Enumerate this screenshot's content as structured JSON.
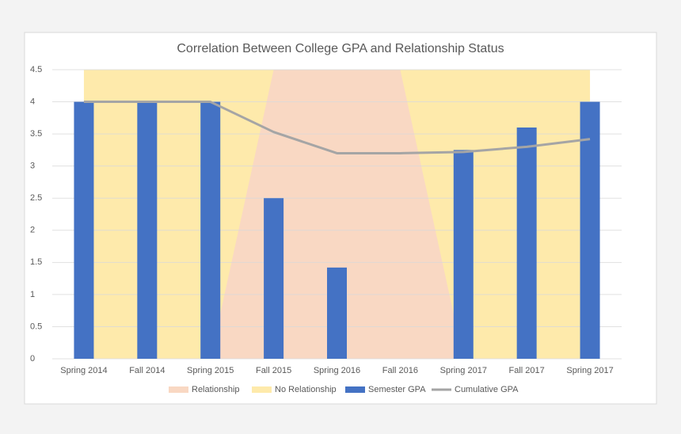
{
  "chart_data": {
    "type": "combo",
    "title": "Correlation Between College GPA and Relationship Status",
    "categories": [
      "Spring 2014",
      "Fall 2014",
      "Spring 2015",
      "Fall 2015",
      "Spring 2016",
      "Fall 2016",
      "Spring 2017",
      "Fall 2017",
      "Spring 2017"
    ],
    "series": [
      {
        "name": "Relationship",
        "type": "area",
        "color": "#f9d8c3",
        "values": [
          0,
          0,
          0,
          4.5,
          4.5,
          4.5,
          0,
          0,
          0
        ]
      },
      {
        "name": "No Relationship",
        "type": "area",
        "color": "#feeaab",
        "values": [
          4.5,
          4.5,
          4.5,
          4.5,
          4.5,
          4.5,
          4.5,
          4.5,
          4.5
        ]
      },
      {
        "name": "Semester GPA",
        "type": "bar",
        "color": "#4472c4",
        "values": [
          4,
          4,
          4,
          2.5,
          1.42,
          0,
          3.25,
          3.6,
          4
        ]
      },
      {
        "name": "Cumulative GPA",
        "type": "line",
        "color": "#a5a5a5",
        "values": [
          4,
          4,
          4,
          3.53,
          3.2,
          3.2,
          3.22,
          3.3,
          3.42
        ]
      }
    ],
    "ylim": [
      0,
      4.5
    ],
    "yticks": [
      0,
      0.5,
      1,
      1.5,
      2,
      2.5,
      3,
      3.5,
      4,
      4.5
    ],
    "grid": true,
    "legend": "bottom"
  }
}
